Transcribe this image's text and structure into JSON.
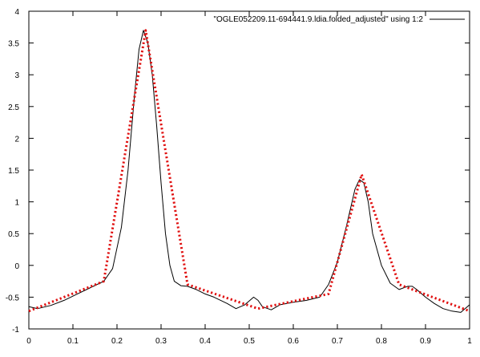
{
  "chart_data": {
    "type": "line",
    "title": "",
    "xlabel": "",
    "ylabel": "",
    "xlim": [
      0,
      1
    ],
    "ylim": [
      -1,
      4
    ],
    "x_ticks": [
      0,
      0.1,
      0.2,
      0.3,
      0.4,
      0.5,
      0.6,
      0.7,
      0.8,
      0.9,
      1
    ],
    "x_tick_labels": [
      "0",
      "0.1",
      "0.2",
      "0.3",
      "0.4",
      "0.5",
      "0.6",
      "0.7",
      "0.8",
      "0.9",
      "1"
    ],
    "y_ticks": [
      -1,
      -0.5,
      0,
      0.5,
      1,
      1.5,
      2,
      2.5,
      3,
      3.5,
      4
    ],
    "y_tick_labels": [
      "-1",
      "-0.5",
      "0",
      "0.5",
      "1",
      "1.5",
      "2",
      "2.5",
      "3",
      "3.5",
      "4"
    ],
    "grid": false,
    "legend_position": "top-right",
    "series": [
      {
        "name": "\"OGLE052209.11-694441.9.ldia.folded_adjusted\" using 1:2",
        "color": "#000000",
        "style": "solid",
        "x": [
          0,
          0.02,
          0.05,
          0.08,
          0.11,
          0.14,
          0.17,
          0.19,
          0.21,
          0.225,
          0.24,
          0.25,
          0.26,
          0.27,
          0.28,
          0.29,
          0.3,
          0.31,
          0.32,
          0.33,
          0.345,
          0.36,
          0.38,
          0.4,
          0.42,
          0.45,
          0.47,
          0.49,
          0.51,
          0.52,
          0.53,
          0.55,
          0.57,
          0.6,
          0.63,
          0.66,
          0.68,
          0.7,
          0.72,
          0.74,
          0.75,
          0.76,
          0.77,
          0.78,
          0.8,
          0.82,
          0.84,
          0.86,
          0.87,
          0.88,
          0.9,
          0.92,
          0.94,
          0.96,
          0.98,
          1
        ],
        "y": [
          -0.65,
          -0.68,
          -0.63,
          -0.55,
          -0.45,
          -0.35,
          -0.25,
          -0.05,
          0.6,
          1.5,
          2.7,
          3.4,
          3.7,
          3.5,
          3.0,
          2.2,
          1.3,
          0.5,
          0.0,
          -0.25,
          -0.32,
          -0.33,
          -0.38,
          -0.45,
          -0.5,
          -0.6,
          -0.68,
          -0.62,
          -0.5,
          -0.55,
          -0.65,
          -0.7,
          -0.62,
          -0.58,
          -0.55,
          -0.5,
          -0.3,
          0.05,
          0.6,
          1.2,
          1.35,
          1.3,
          1.0,
          0.5,
          0.0,
          -0.28,
          -0.38,
          -0.33,
          -0.33,
          -0.38,
          -0.5,
          -0.6,
          -0.68,
          -0.72,
          -0.74,
          -0.62
        ]
      },
      {
        "name": "",
        "color": "#e01010",
        "style": "dotted",
        "x": [
          0,
          0.17,
          0.265,
          0.36,
          0.52,
          0.68,
          0.755,
          0.84,
          1
        ],
        "y": [
          -0.72,
          -0.25,
          3.7,
          -0.3,
          -0.68,
          -0.45,
          1.43,
          -0.3,
          -0.72
        ]
      }
    ]
  }
}
